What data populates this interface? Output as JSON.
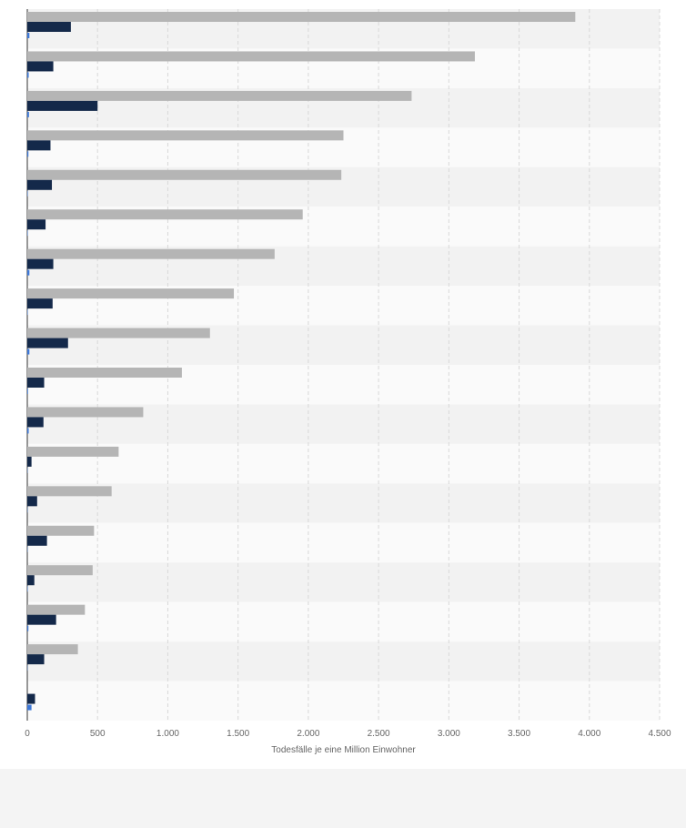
{
  "chart_data": {
    "type": "bar",
    "orientation": "horizontal",
    "xlabel": "Todesfälle je eine Million Einwohner",
    "xlim": [
      0,
      4500
    ],
    "x_ticks": [
      0,
      500,
      1000,
      1500,
      2000,
      2500,
      3000,
      3500,
      4000,
      4500
    ],
    "x_tick_labels": [
      "0",
      "500",
      "1.000",
      "1.500",
      "2.000",
      "2.500",
      "3.000",
      "3.500",
      "4.000",
      "4.500"
    ],
    "grid": true,
    "categories": [
      "",
      "",
      "",
      "",
      "",
      "",
      "",
      "",
      "",
      "",
      "",
      "",
      "",
      "",
      "",
      "",
      "",
      ""
    ],
    "series": [
      {
        "color": "#b5b5b5",
        "values": [
          3900,
          3185,
          2735,
          2250,
          2235,
          1960,
          1760,
          1470,
          1300,
          1100,
          825,
          650,
          600,
          475,
          465,
          410,
          360,
          0
        ]
      },
      {
        "color": "#14294a",
        "values": [
          310,
          185,
          500,
          165,
          175,
          130,
          185,
          180,
          290,
          120,
          115,
          30,
          70,
          140,
          50,
          205,
          120,
          55
        ]
      },
      {
        "color": "#3d78d8",
        "values": [
          15,
          10,
          12,
          8,
          3,
          3,
          15,
          3,
          15,
          5,
          10,
          2,
          2,
          2,
          3,
          8,
          2,
          30
        ]
      }
    ]
  }
}
